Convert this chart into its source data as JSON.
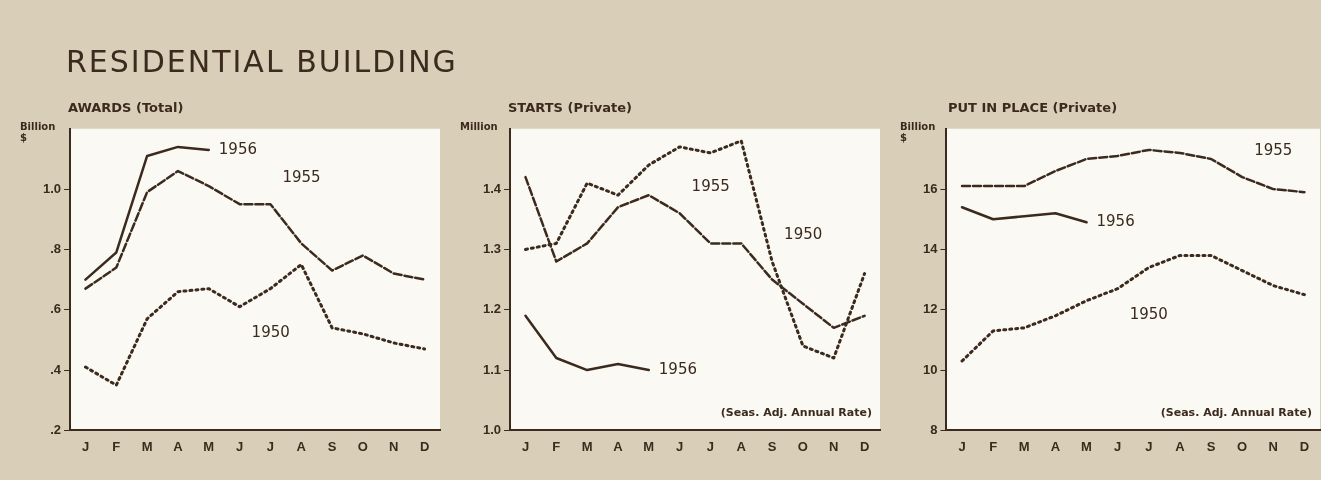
{
  "chart_data": [
    {
      "type": "line",
      "title": "RESIDENTIAL BUILDING",
      "subtitle": "AWARDS (Total)",
      "ylabel": "Billion $",
      "categories": [
        "J",
        "F",
        "M",
        "A",
        "M",
        "J",
        "J",
        "A",
        "S",
        "O",
        "N",
        "D"
      ],
      "ylim": [
        0.2,
        1.2
      ],
      "yticks": [
        {
          "value": 0.2,
          "label": ".2"
        },
        {
          "value": 0.4,
          "label": ".4"
        },
        {
          "value": 0.6,
          "label": ".6"
        },
        {
          "value": 0.8,
          "label": ".8"
        },
        {
          "value": 1.0,
          "label": "1.0"
        }
      ],
      "legend": false,
      "grid": false,
      "marker": "none",
      "series": [
        {
          "name": "1956",
          "color": "#3b2a1e",
          "line_style": "solid",
          "values": [
            0.7,
            0.79,
            1.11,
            1.14,
            1.13,
            null,
            null,
            null,
            null,
            null,
            null,
            null
          ]
        },
        {
          "name": "1955",
          "color": "#3b2a1e",
          "line_style": "dashed",
          "values": [
            0.67,
            0.74,
            0.99,
            1.06,
            1.01,
            0.95,
            0.95,
            0.82,
            0.73,
            0.78,
            0.72,
            0.7
          ]
        },
        {
          "name": "1950",
          "color": "#3b2a1e",
          "line_style": "dotted",
          "values": [
            0.41,
            0.35,
            0.57,
            0.66,
            0.67,
            0.61,
            0.67,
            0.75,
            0.54,
            0.52,
            0.49,
            0.47
          ]
        }
      ]
    },
    {
      "type": "line",
      "subtitle": "STARTS (Private)",
      "ylabel": "Million",
      "categories": [
        "J",
        "F",
        "M",
        "A",
        "M",
        "J",
        "J",
        "A",
        "S",
        "O",
        "N",
        "D"
      ],
      "ylim": [
        1.0,
        1.5
      ],
      "yticks": [
        {
          "value": 1.0,
          "label": "1.0"
        },
        {
          "value": 1.1,
          "label": "1.1"
        },
        {
          "value": 1.2,
          "label": "1.2"
        },
        {
          "value": 1.3,
          "label": "1.3"
        },
        {
          "value": 1.4,
          "label": "1.4"
        }
      ],
      "legend": false,
      "grid": false,
      "marker": "none",
      "annotations": [
        "(Seas. Adj. Annual Rate)"
      ],
      "series": [
        {
          "name": "1956",
          "color": "#3b2a1e",
          "line_style": "solid",
          "values": [
            1.19,
            1.12,
            1.1,
            1.11,
            1.1,
            null,
            null,
            null,
            null,
            null,
            null,
            null
          ]
        },
        {
          "name": "1955",
          "color": "#3b2a1e",
          "line_style": "dashed",
          "values": [
            1.42,
            1.28,
            1.31,
            1.37,
            1.39,
            1.36,
            1.31,
            1.31,
            1.25,
            1.21,
            1.17,
            1.19
          ]
        },
        {
          "name": "1950",
          "color": "#3b2a1e",
          "line_style": "dotted",
          "values": [
            1.3,
            1.31,
            1.41,
            1.39,
            1.44,
            1.47,
            1.46,
            1.48,
            1.28,
            1.14,
            1.12,
            1.26
          ]
        }
      ]
    },
    {
      "type": "line",
      "subtitle": "PUT IN PLACE (Private)",
      "ylabel": "Billion $",
      "categories": [
        "J",
        "F",
        "M",
        "A",
        "M",
        "J",
        "J",
        "A",
        "S",
        "O",
        "N",
        "D"
      ],
      "ylim": [
        8,
        18
      ],
      "yticks": [
        8,
        10,
        12,
        14,
        16
      ],
      "legend": false,
      "grid": false,
      "marker": "none",
      "annotations": [
        "(Seas. Adj. Annual Rate)"
      ],
      "series": [
        {
          "name": "1955",
          "color": "#3b2a1e",
          "line_style": "dashed",
          "values": [
            16.1,
            16.1,
            16.1,
            16.6,
            17.0,
            17.1,
            17.3,
            17.2,
            17.0,
            16.4,
            16.0,
            15.9
          ]
        },
        {
          "name": "1956",
          "color": "#3b2a1e",
          "line_style": "solid",
          "values": [
            15.4,
            15.0,
            15.1,
            15.2,
            14.9,
            null,
            null,
            null,
            null,
            null,
            null,
            null
          ]
        },
        {
          "name": "1950",
          "color": "#3b2a1e",
          "line_style": "dotted",
          "values": [
            10.3,
            11.3,
            11.4,
            11.8,
            12.3,
            12.7,
            13.4,
            13.8,
            13.8,
            13.3,
            12.8,
            12.5
          ]
        }
      ]
    }
  ]
}
